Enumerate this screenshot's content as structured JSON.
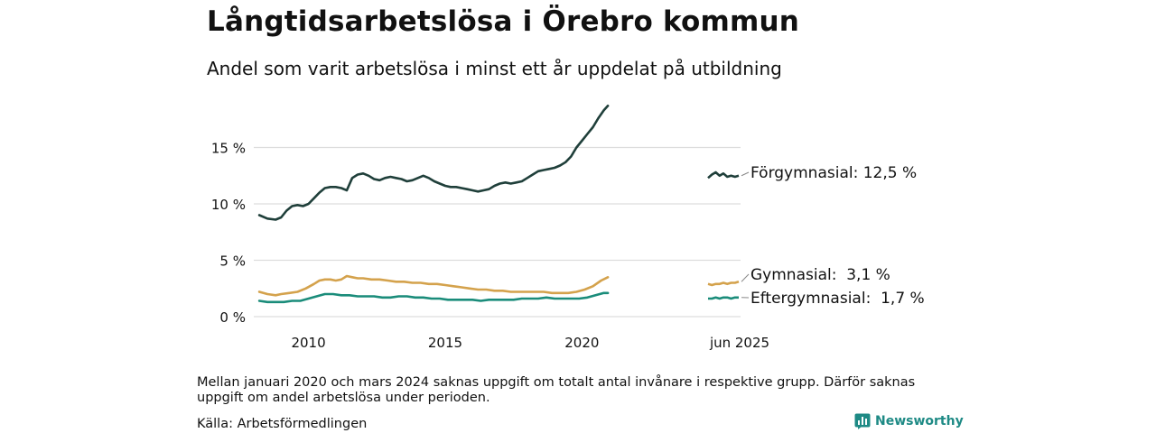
{
  "title": "Långtidsarbetslösa i Örebro kommun",
  "subtitle": "Andel som varit arbetslösa i minst ett år uppdelat på utbildning",
  "note": "Mellan januari 2020 och mars 2024 saknas uppgift om totalt antal invånare i respektive grupp. Därför saknas uppgift om andel arbetslösa under perioden.",
  "source": "Källa: Arbetsförmedlingen",
  "brand": "Newsworthy",
  "colors": {
    "forgymnasial": "#1f3f3a",
    "gymnasial": "#d4a24c",
    "eftergymnasial": "#1a8c7a",
    "grid": "#dddddd"
  },
  "chart_data": {
    "type": "line",
    "x_unit": "year",
    "xlim": [
      2008.0,
      2025.8
    ],
    "ylim": [
      0,
      20
    ],
    "y_ticks": [
      0,
      5,
      10,
      15
    ],
    "y_tick_labels": [
      "0 %",
      "5 %",
      "10 %",
      "15 %"
    ],
    "x_ticks": [
      2010,
      2015,
      2020
    ],
    "x_tick_labels": [
      "2010",
      "2015",
      "2020"
    ],
    "recent_label": "jun 2025",
    "grid": true,
    "series": [
      {
        "name": "Förgymnasial",
        "end_label": "Förgymnasial: 12,5 %",
        "color": "#1f3f3a",
        "points": [
          [
            2008.2,
            9.0
          ],
          [
            2008.5,
            8.7
          ],
          [
            2008.8,
            8.6
          ],
          [
            2009.0,
            8.8
          ],
          [
            2009.2,
            9.4
          ],
          [
            2009.4,
            9.8
          ],
          [
            2009.6,
            9.9
          ],
          [
            2009.8,
            9.8
          ],
          [
            2010.0,
            10.0
          ],
          [
            2010.2,
            10.5
          ],
          [
            2010.4,
            11.0
          ],
          [
            2010.6,
            11.4
          ],
          [
            2010.8,
            11.5
          ],
          [
            2011.0,
            11.5
          ],
          [
            2011.2,
            11.4
          ],
          [
            2011.4,
            11.2
          ],
          [
            2011.6,
            12.3
          ],
          [
            2011.8,
            12.6
          ],
          [
            2012.0,
            12.7
          ],
          [
            2012.2,
            12.5
          ],
          [
            2012.4,
            12.2
          ],
          [
            2012.6,
            12.1
          ],
          [
            2012.8,
            12.3
          ],
          [
            2013.0,
            12.4
          ],
          [
            2013.2,
            12.3
          ],
          [
            2013.4,
            12.2
          ],
          [
            2013.6,
            12.0
          ],
          [
            2013.8,
            12.1
          ],
          [
            2014.0,
            12.3
          ],
          [
            2014.2,
            12.5
          ],
          [
            2014.4,
            12.3
          ],
          [
            2014.6,
            12.0
          ],
          [
            2014.8,
            11.8
          ],
          [
            2015.0,
            11.6
          ],
          [
            2015.2,
            11.5
          ],
          [
            2015.4,
            11.5
          ],
          [
            2015.6,
            11.4
          ],
          [
            2015.8,
            11.3
          ],
          [
            2016.0,
            11.2
          ],
          [
            2016.2,
            11.1
          ],
          [
            2016.4,
            11.2
          ],
          [
            2016.6,
            11.3
          ],
          [
            2016.8,
            11.6
          ],
          [
            2017.0,
            11.8
          ],
          [
            2017.2,
            11.9
          ],
          [
            2017.4,
            11.8
          ],
          [
            2017.6,
            11.9
          ],
          [
            2017.8,
            12.0
          ],
          [
            2018.0,
            12.3
          ],
          [
            2018.2,
            12.6
          ],
          [
            2018.4,
            12.9
          ],
          [
            2018.6,
            13.0
          ],
          [
            2018.8,
            13.1
          ],
          [
            2019.0,
            13.2
          ],
          [
            2019.2,
            13.4
          ],
          [
            2019.4,
            13.7
          ],
          [
            2019.6,
            14.2
          ],
          [
            2019.8,
            15.0
          ],
          [
            2020.0,
            15.6
          ],
          [
            2020.2,
            16.2
          ],
          [
            2020.4,
            16.8
          ],
          [
            2020.6,
            17.6
          ],
          [
            2020.8,
            18.3
          ],
          [
            2020.95,
            18.7
          ]
        ]
      },
      {
        "name": "Gymnasial",
        "end_label": "Gymnasial:  3,1 %",
        "color": "#d4a24c",
        "points": [
          [
            2008.2,
            2.2
          ],
          [
            2008.5,
            2.0
          ],
          [
            2008.8,
            1.9
          ],
          [
            2009.0,
            2.0
          ],
          [
            2009.3,
            2.1
          ],
          [
            2009.6,
            2.2
          ],
          [
            2009.9,
            2.5
          ],
          [
            2010.2,
            2.9
          ],
          [
            2010.4,
            3.2
          ],
          [
            2010.6,
            3.3
          ],
          [
            2010.8,
            3.3
          ],
          [
            2011.0,
            3.2
          ],
          [
            2011.2,
            3.3
          ],
          [
            2011.4,
            3.6
          ],
          [
            2011.6,
            3.5
          ],
          [
            2011.8,
            3.4
          ],
          [
            2012.0,
            3.4
          ],
          [
            2012.3,
            3.3
          ],
          [
            2012.6,
            3.3
          ],
          [
            2012.9,
            3.2
          ],
          [
            2013.2,
            3.1
          ],
          [
            2013.5,
            3.1
          ],
          [
            2013.8,
            3.0
          ],
          [
            2014.1,
            3.0
          ],
          [
            2014.4,
            2.9
          ],
          [
            2014.7,
            2.9
          ],
          [
            2015.0,
            2.8
          ],
          [
            2015.3,
            2.7
          ],
          [
            2015.6,
            2.6
          ],
          [
            2015.9,
            2.5
          ],
          [
            2016.2,
            2.4
          ],
          [
            2016.5,
            2.4
          ],
          [
            2016.8,
            2.3
          ],
          [
            2017.1,
            2.3
          ],
          [
            2017.4,
            2.2
          ],
          [
            2017.7,
            2.2
          ],
          [
            2018.0,
            2.2
          ],
          [
            2018.3,
            2.2
          ],
          [
            2018.6,
            2.2
          ],
          [
            2018.9,
            2.1
          ],
          [
            2019.2,
            2.1
          ],
          [
            2019.5,
            2.1
          ],
          [
            2019.8,
            2.2
          ],
          [
            2020.1,
            2.4
          ],
          [
            2020.4,
            2.7
          ],
          [
            2020.7,
            3.2
          ],
          [
            2020.95,
            3.5
          ]
        ]
      },
      {
        "name": "Eftergymnasial",
        "end_label": "Eftergymnasial:  1,7 %",
        "color": "#1a8c7a",
        "points": [
          [
            2008.2,
            1.4
          ],
          [
            2008.5,
            1.3
          ],
          [
            2008.8,
            1.3
          ],
          [
            2009.1,
            1.3
          ],
          [
            2009.4,
            1.4
          ],
          [
            2009.7,
            1.4
          ],
          [
            2010.0,
            1.6
          ],
          [
            2010.3,
            1.8
          ],
          [
            2010.6,
            2.0
          ],
          [
            2010.9,
            2.0
          ],
          [
            2011.2,
            1.9
          ],
          [
            2011.5,
            1.9
          ],
          [
            2011.8,
            1.8
          ],
          [
            2012.1,
            1.8
          ],
          [
            2012.4,
            1.8
          ],
          [
            2012.7,
            1.7
          ],
          [
            2013.0,
            1.7
          ],
          [
            2013.3,
            1.8
          ],
          [
            2013.6,
            1.8
          ],
          [
            2013.9,
            1.7
          ],
          [
            2014.2,
            1.7
          ],
          [
            2014.5,
            1.6
          ],
          [
            2014.8,
            1.6
          ],
          [
            2015.1,
            1.5
          ],
          [
            2015.4,
            1.5
          ],
          [
            2015.7,
            1.5
          ],
          [
            2016.0,
            1.5
          ],
          [
            2016.3,
            1.4
          ],
          [
            2016.6,
            1.5
          ],
          [
            2016.9,
            1.5
          ],
          [
            2017.2,
            1.5
          ],
          [
            2017.5,
            1.5
          ],
          [
            2017.8,
            1.6
          ],
          [
            2018.1,
            1.6
          ],
          [
            2018.4,
            1.6
          ],
          [
            2018.7,
            1.7
          ],
          [
            2019.0,
            1.6
          ],
          [
            2019.3,
            1.6
          ],
          [
            2019.6,
            1.6
          ],
          [
            2019.9,
            1.6
          ],
          [
            2020.2,
            1.7
          ],
          [
            2020.5,
            1.9
          ],
          [
            2020.8,
            2.1
          ],
          [
            2020.95,
            2.1
          ]
        ]
      }
    ],
    "recent": [
      {
        "name": "Förgymnasial",
        "values": [
          12.3,
          12.6,
          12.8,
          12.5,
          12.7,
          12.4,
          12.5,
          12.4,
          12.5
        ],
        "last": 12.5
      },
      {
        "name": "Gymnasial",
        "values": [
          2.9,
          2.8,
          2.9,
          2.9,
          3.0,
          2.9,
          3.0,
          3.0,
          3.1
        ],
        "last": 3.1
      },
      {
        "name": "Eftergymnasial",
        "values": [
          1.6,
          1.6,
          1.7,
          1.6,
          1.7,
          1.7,
          1.6,
          1.7,
          1.7
        ],
        "last": 1.7
      }
    ]
  }
}
